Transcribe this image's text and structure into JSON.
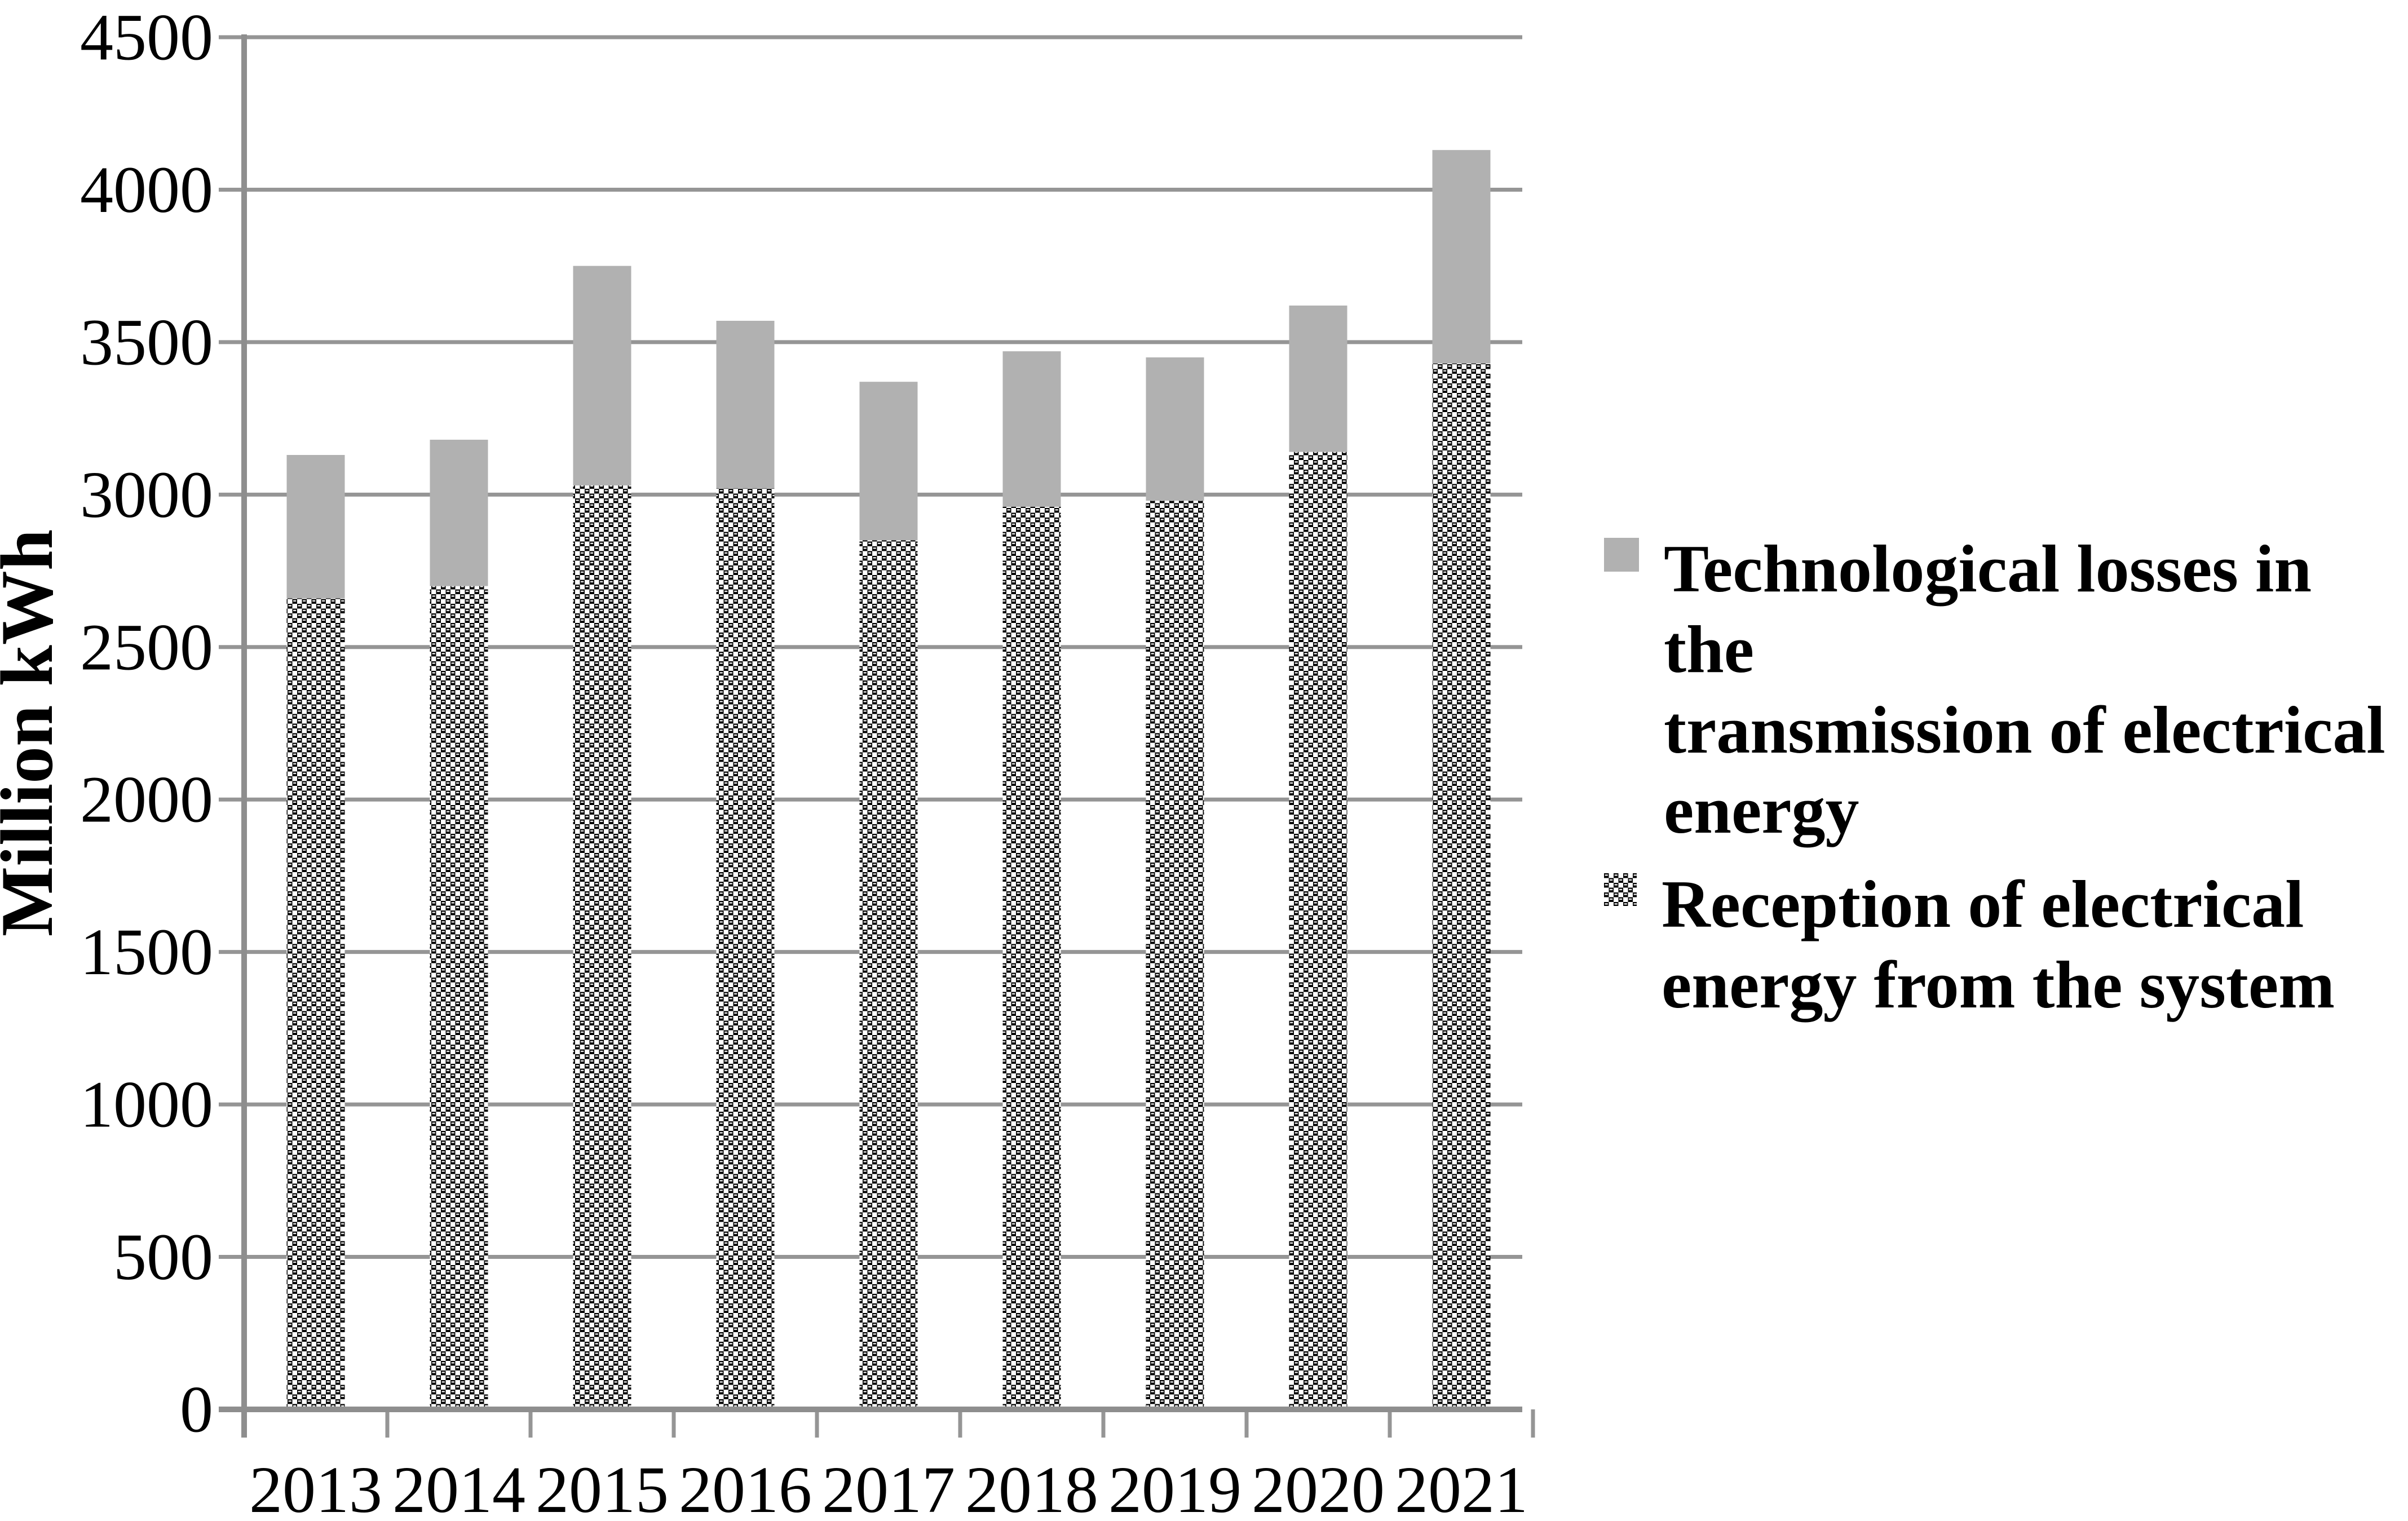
{
  "figure": {
    "background": "#ffffff",
    "colors": {
      "losses_fill": "#b1b1b1",
      "reception_pattern_fg": "#000000",
      "reception_pattern_bg": "#ffffff",
      "gridline": "#959595",
      "axis": "#8e8e8e",
      "text": "#000000"
    }
  },
  "y_axis": {
    "title": "Million kWh",
    "tick_labels": [
      "0",
      "500",
      "1000",
      "1500",
      "2000",
      "2500",
      "3000",
      "3500",
      "4000",
      "4500"
    ]
  },
  "x_axis": {
    "tick_labels": [
      "2013",
      "2014",
      "2015",
      "2016",
      "2017",
      "2018",
      "2019",
      "2020",
      "2021"
    ]
  },
  "legend": {
    "entries": [
      {
        "key": "losses",
        "marker": "gray-square",
        "lines": [
          "Technological losses in the",
          "transmission of electrical",
          "energy"
        ]
      },
      {
        "key": "reception",
        "marker": "checker-square",
        "lines": [
          "Reception of electrical",
          "energy from the system"
        ]
      }
    ]
  },
  "chart_data": {
    "type": "bar",
    "stacked": true,
    "title": "",
    "xlabel": "",
    "ylabel": "Million kWh",
    "categories": [
      "2013",
      "2014",
      "2015",
      "2016",
      "2017",
      "2018",
      "2019",
      "2020",
      "2021"
    ],
    "series": [
      {
        "name": "Reception of electrical energy from the system",
        "style": "checker-pattern",
        "values": [
          2660,
          2700,
          3030,
          3020,
          2850,
          2960,
          2980,
          3140,
          3430
        ]
      },
      {
        "name": "Technological losses in the transmission of electrical energy",
        "style": "gray-solid",
        "values": [
          470,
          480,
          720,
          550,
          520,
          510,
          470,
          480,
          700
        ]
      }
    ],
    "stack_totals": [
      3130,
      3180,
      3750,
      3570,
      3370,
      3470,
      3450,
      3620,
      4130
    ],
    "ylim": [
      0,
      4500
    ],
    "y_ticks": [
      0,
      500,
      1000,
      1500,
      2000,
      2500,
      3000,
      3500,
      4000,
      4500
    ],
    "grid": "horizontal",
    "legend_position": "right"
  }
}
